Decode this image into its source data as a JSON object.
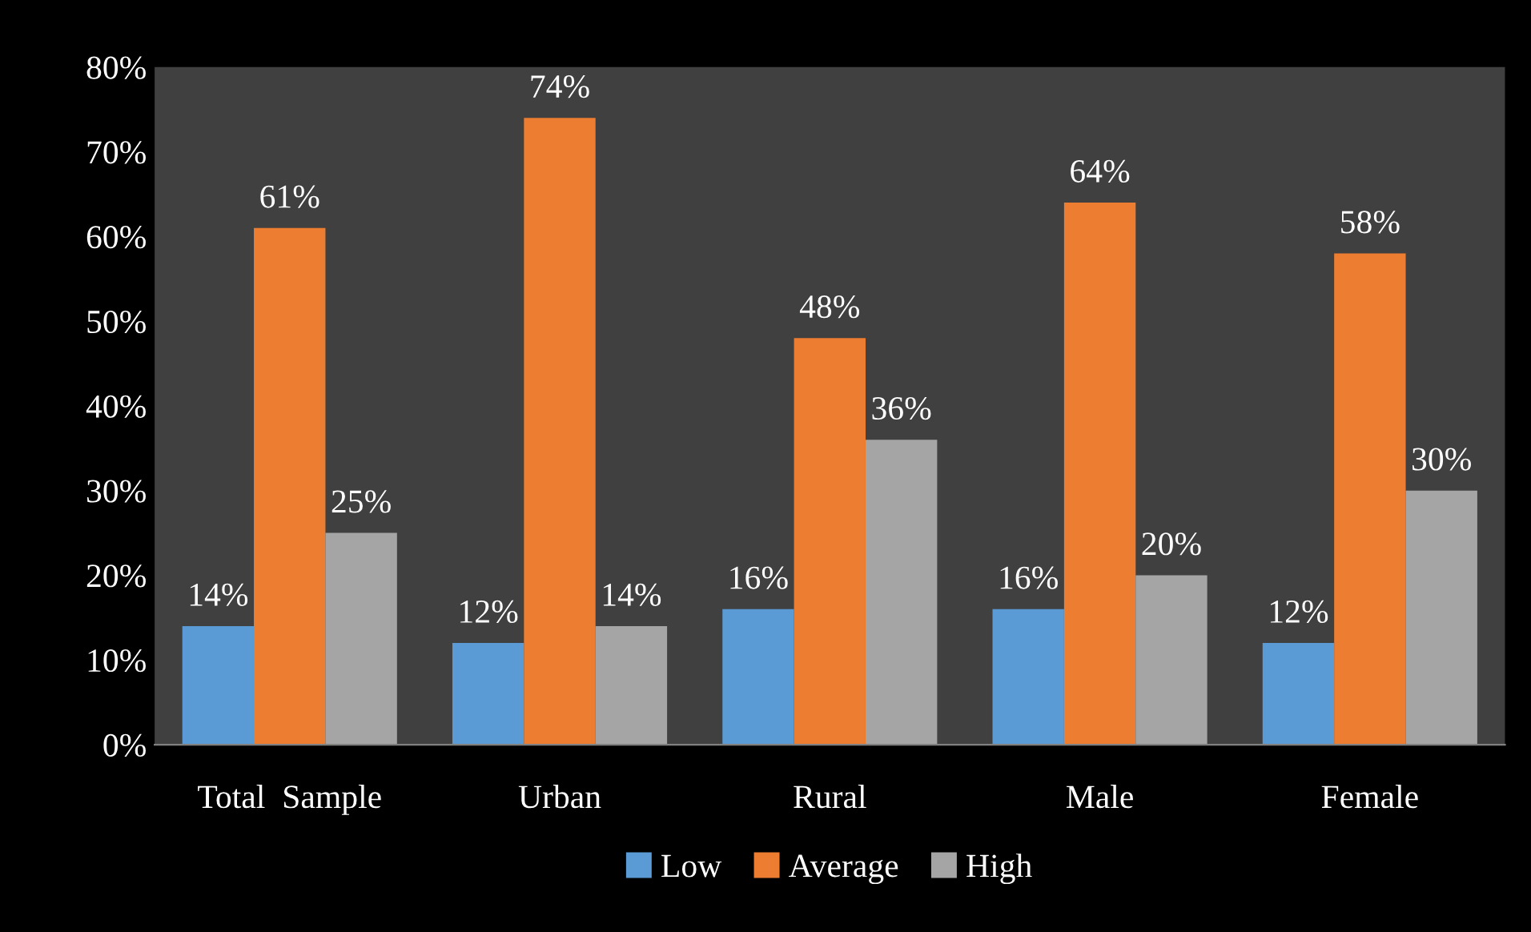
{
  "chart_data": {
    "type": "bar",
    "categories": [
      "Total  Sample",
      "Urban",
      "Rural",
      "Male",
      "Female"
    ],
    "series": [
      {
        "name": "Low",
        "color": "#5b9bd5",
        "values": [
          14,
          12,
          16,
          16,
          12
        ],
        "value_labels": [
          "14%",
          "12%",
          "16%",
          "16%",
          "12%"
        ]
      },
      {
        "name": "Average",
        "color": "#ed7d31",
        "values": [
          61,
          74,
          48,
          64,
          58
        ],
        "value_labels": [
          "61%",
          "74%",
          "48%",
          "64%",
          "58%"
        ]
      },
      {
        "name": "High",
        "color": "#a5a5a5",
        "values": [
          25,
          14,
          36,
          20,
          30
        ],
        "value_labels": [
          "25%",
          "14%",
          "36%",
          "20%",
          "30%"
        ]
      }
    ],
    "ylim": [
      0,
      80
    ],
    "yticks": [
      {
        "value": 0,
        "label": "0%"
      },
      {
        "value": 10,
        "label": "10%"
      },
      {
        "value": 20,
        "label": "20%"
      },
      {
        "value": 30,
        "label": "30%"
      },
      {
        "value": 40,
        "label": "40%"
      },
      {
        "value": 50,
        "label": "50%"
      },
      {
        "value": 60,
        "label": "60%"
      },
      {
        "value": 70,
        "label": "70%"
      },
      {
        "value": 80,
        "label": "80%"
      }
    ],
    "grid": false,
    "legend": "bottom"
  }
}
